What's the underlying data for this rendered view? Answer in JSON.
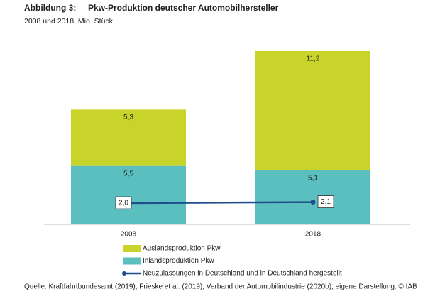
{
  "chart_data": {
    "type": "bar",
    "stacked": true,
    "figure_label": "Abbildung 3:",
    "title": "Pkw-Produktion deutscher Automobilhersteller",
    "subtitle": "2008 und 2018, Mio. Stück",
    "categories": [
      "2008",
      "2018"
    ],
    "series": [
      {
        "name": "Auslandsproduktion Pkw",
        "color": "#c8d42a",
        "values": [
          5.3,
          11.2
        ],
        "value_labels": [
          "5,3",
          "11,2"
        ]
      },
      {
        "name": "Inlandsproduktion Pkw",
        "color": "#5bbfc0",
        "values": [
          5.5,
          5.1
        ],
        "value_labels": [
          "5,5",
          "5,1"
        ]
      },
      {
        "name": "Neuzulassungen in Deutschland und in Deutschland hergestellt",
        "color": "#1f4e8c",
        "type": "line",
        "values": [
          2.0,
          2.1
        ],
        "value_labels": [
          "2,0",
          "2,1"
        ]
      }
    ],
    "source": "Quelle: Kraftfahrtbundesamt (2019), Frieske et al. (2019); Verband der Automobilindustrie (2020b); eigene Darstellung. © IAB"
  }
}
